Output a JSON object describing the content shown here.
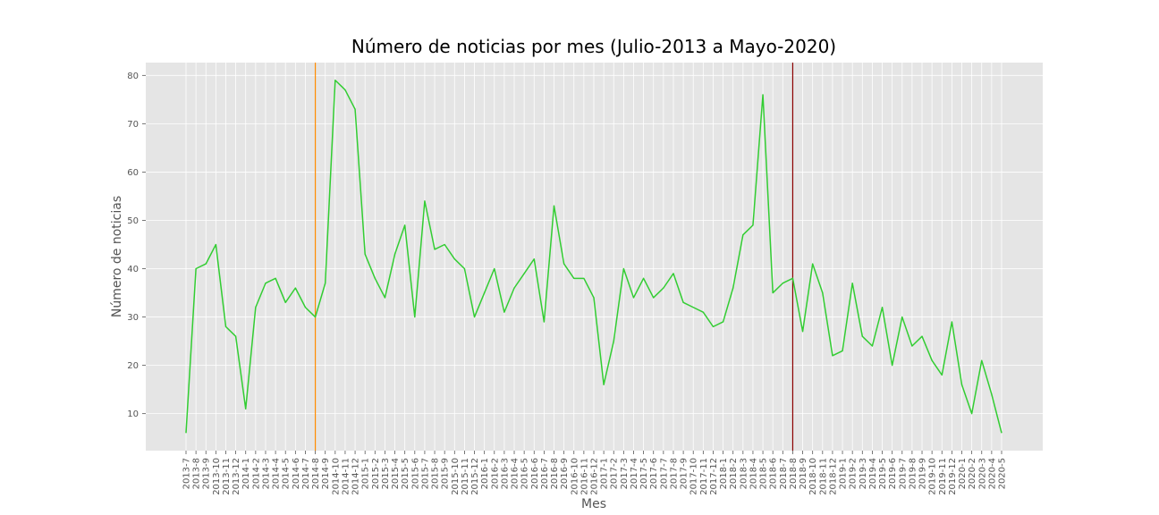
{
  "chart_data": {
    "type": "line",
    "title": "Número de noticias por mes (Julio-2013 a Mayo-2020)",
    "xlabel": "Mes",
    "ylabel": "Número de noticias",
    "ylim": [
      2.35,
      82.65
    ],
    "yticks": [
      10,
      20,
      30,
      40,
      50,
      60,
      70,
      80
    ],
    "grid": true,
    "categories": [
      "2013-7",
      "2013-8",
      "2013-9",
      "2013-10",
      "2013-11",
      "2013-12",
      "2014-1",
      "2014-2",
      "2014-3",
      "2014-4",
      "2014-5",
      "2014-6",
      "2014-7",
      "2014-8",
      "2014-9",
      "2014-10",
      "2014-11",
      "2014-12",
      "2015-1",
      "2015-2",
      "2015-3",
      "2015-4",
      "2015-5",
      "2015-6",
      "2015-7",
      "2015-8",
      "2015-9",
      "2015-10",
      "2015-11",
      "2015-12",
      "2016-1",
      "2016-2",
      "2016-3",
      "2016-4",
      "2016-5",
      "2016-6",
      "2016-7",
      "2016-8",
      "2016-9",
      "2016-10",
      "2016-11",
      "2016-12",
      "2017-1",
      "2017-2",
      "2017-3",
      "2017-4",
      "2017-5",
      "2017-6",
      "2017-7",
      "2017-8",
      "2017-9",
      "2017-10",
      "2017-11",
      "2017-12",
      "2018-1",
      "2018-2",
      "2018-3",
      "2018-4",
      "2018-5",
      "2018-6",
      "2018-7",
      "2018-8",
      "2018-9",
      "2018-10",
      "2018-11",
      "2018-12",
      "2019-1",
      "2019-2",
      "2019-3",
      "2019-4",
      "2019-5",
      "2019-6",
      "2019-7",
      "2019-8",
      "2019-9",
      "2019-10",
      "2019-11",
      "2019-12",
      "2020-1",
      "2020-2",
      "2020-3",
      "2020-4",
      "2020-5"
    ],
    "tick_labels": [
      "2013-7",
      "2013-8",
      "2013-9",
      "2013-10",
      "2013-11",
      "2013-12",
      "2014-1",
      "2014-2",
      "2014-3",
      "2014-4",
      "2014-5",
      "2014-6",
      "2014-7",
      "2014-8",
      "2014-9",
      "2014-10",
      "2014-11",
      "2014-12",
      "2015-1",
      "2015-2",
      "2015-3",
      "2015-4",
      "2015-5",
      "2015-6",
      "2015-7",
      "2015-8",
      "2015-9",
      "2015-10",
      "2015-11",
      "2015-12",
      "2016-1",
      "2016-2",
      "2016-3",
      "2016-4",
      "2016-5",
      "2016-6",
      "2016-7",
      "2016-8",
      "2016-9",
      "2016-10",
      "2016-11",
      "2016-12",
      "2017-1",
      "2017-2",
      "2017-3",
      "2017-4",
      "2017-5",
      "2017-6",
      "2017-7",
      "2017-8",
      "2017-9",
      "2017-10",
      "2017-11",
      "2017-12",
      "2018-1",
      "2018-2",
      "2018-3",
      "2018-4",
      "2018-5",
      "2018-6",
      "2018-7",
      "2018-8",
      "2018-9",
      "2018-10",
      "2018-11",
      "2018-12",
      "2019-1",
      "2019-2",
      "2019-3",
      "2019-4",
      "2019-5",
      "2019-6",
      "2019-7",
      "2019-8",
      "2019-9",
      "2019-10",
      "2019-11",
      "2019-12",
      "2020-1",
      "2020-2",
      "2020-3",
      "2020-4",
      "2020-5"
    ],
    "series": [
      {
        "color": "#32cd32",
        "values": [
          6,
          40,
          41,
          45,
          28,
          26,
          11,
          32,
          37,
          38,
          33,
          36,
          32,
          30,
          37,
          79,
          77,
          73,
          43,
          38,
          34,
          43,
          49,
          30,
          54,
          44,
          45,
          42,
          40,
          30,
          35,
          40,
          31,
          36,
          39,
          42,
          29,
          53,
          41,
          38,
          38,
          34,
          16,
          25,
          40,
          34,
          38,
          34,
          36,
          39,
          33,
          32,
          31,
          28,
          29,
          36,
          47,
          49,
          76,
          35,
          37,
          38,
          27,
          41,
          35,
          22,
          23,
          37,
          26,
          24,
          32,
          20,
          30,
          24,
          26,
          21,
          18,
          29,
          16,
          10,
          21,
          14,
          6
        ]
      }
    ],
    "vlines": [
      {
        "x": "2014-8",
        "color": "#ff8c00"
      },
      {
        "x": "2018-8",
        "color": "#8b0000"
      }
    ],
    "colors": {
      "plot_background": "#e5e5e5",
      "grid": "#ffffff",
      "line": "#32cd32"
    }
  }
}
